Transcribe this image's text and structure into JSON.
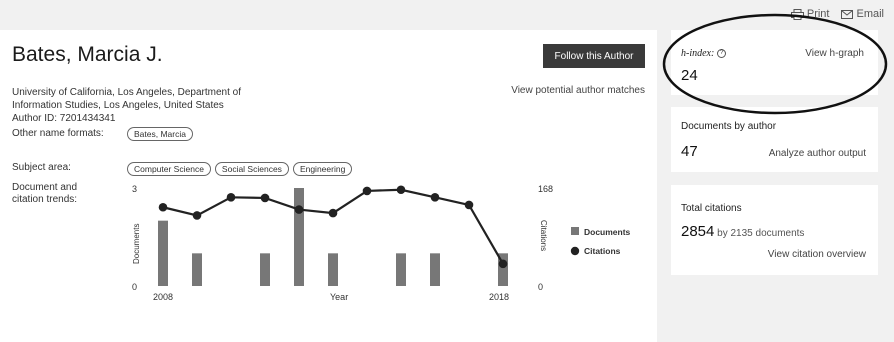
{
  "top_actions": {
    "print": "Print",
    "email": "Email"
  },
  "author": {
    "name": "Bates, Marcia J.",
    "follow_label": "Follow this Author",
    "potential_matches": "View potential author matches",
    "affiliation_line1": "University of California, Los Angeles, Department of",
    "affiliation_line2": "Information Studies, Los Angeles, United States",
    "author_id": "Author ID: 7201434341",
    "other_names_label": "Other name formats:",
    "other_names": [
      "Bates, Marcia"
    ],
    "subject_label": "Subject area:",
    "subjects": [
      "Computer Science",
      "Social Sciences",
      "Engineering"
    ],
    "trends_label_line1": "Document and",
    "trends_label_line2": "citation trends:"
  },
  "metrics": {
    "hindex_label": "h-index:",
    "hindex_value": "24",
    "hgraph_link": "View h-graph",
    "docs_title": "Documents by author",
    "docs_value": "47",
    "analyze_link": "Analyze author output",
    "cit_title": "Total citations",
    "cit_value": "2854",
    "cit_by": "by 2135 documents",
    "cit_overview_link": "View citation overview"
  },
  "chart_data": {
    "type": "bar",
    "x": [
      2008,
      2009,
      2010,
      2011,
      2012,
      2013,
      2014,
      2015,
      2016,
      2017,
      2018
    ],
    "x_tick_labels": [
      "2008",
      "2018"
    ],
    "xlabel": "Year",
    "ylabel_left": "Documents",
    "ylabel_right": "Citations",
    "left_axis_ticks": [
      "3",
      "0"
    ],
    "right_axis_ticks": [
      "168",
      "0"
    ],
    "ylim_left": [
      0,
      3
    ],
    "ylim_right": [
      0,
      168
    ],
    "series": [
      {
        "name": "Documents",
        "type": "bar",
        "values": [
          2,
          1,
          0,
          1,
          3,
          1,
          0,
          1,
          1,
          0,
          1
        ],
        "color": "#777777"
      },
      {
        "name": "Citations",
        "type": "line",
        "values": [
          135,
          121,
          152,
          151,
          131,
          125,
          163,
          165,
          152,
          139,
          38
        ],
        "color": "#222222"
      }
    ],
    "legend_position": "right"
  },
  "colors": {
    "button_bg": "#3a3a3a",
    "bar": "#777777",
    "line": "#222222"
  }
}
